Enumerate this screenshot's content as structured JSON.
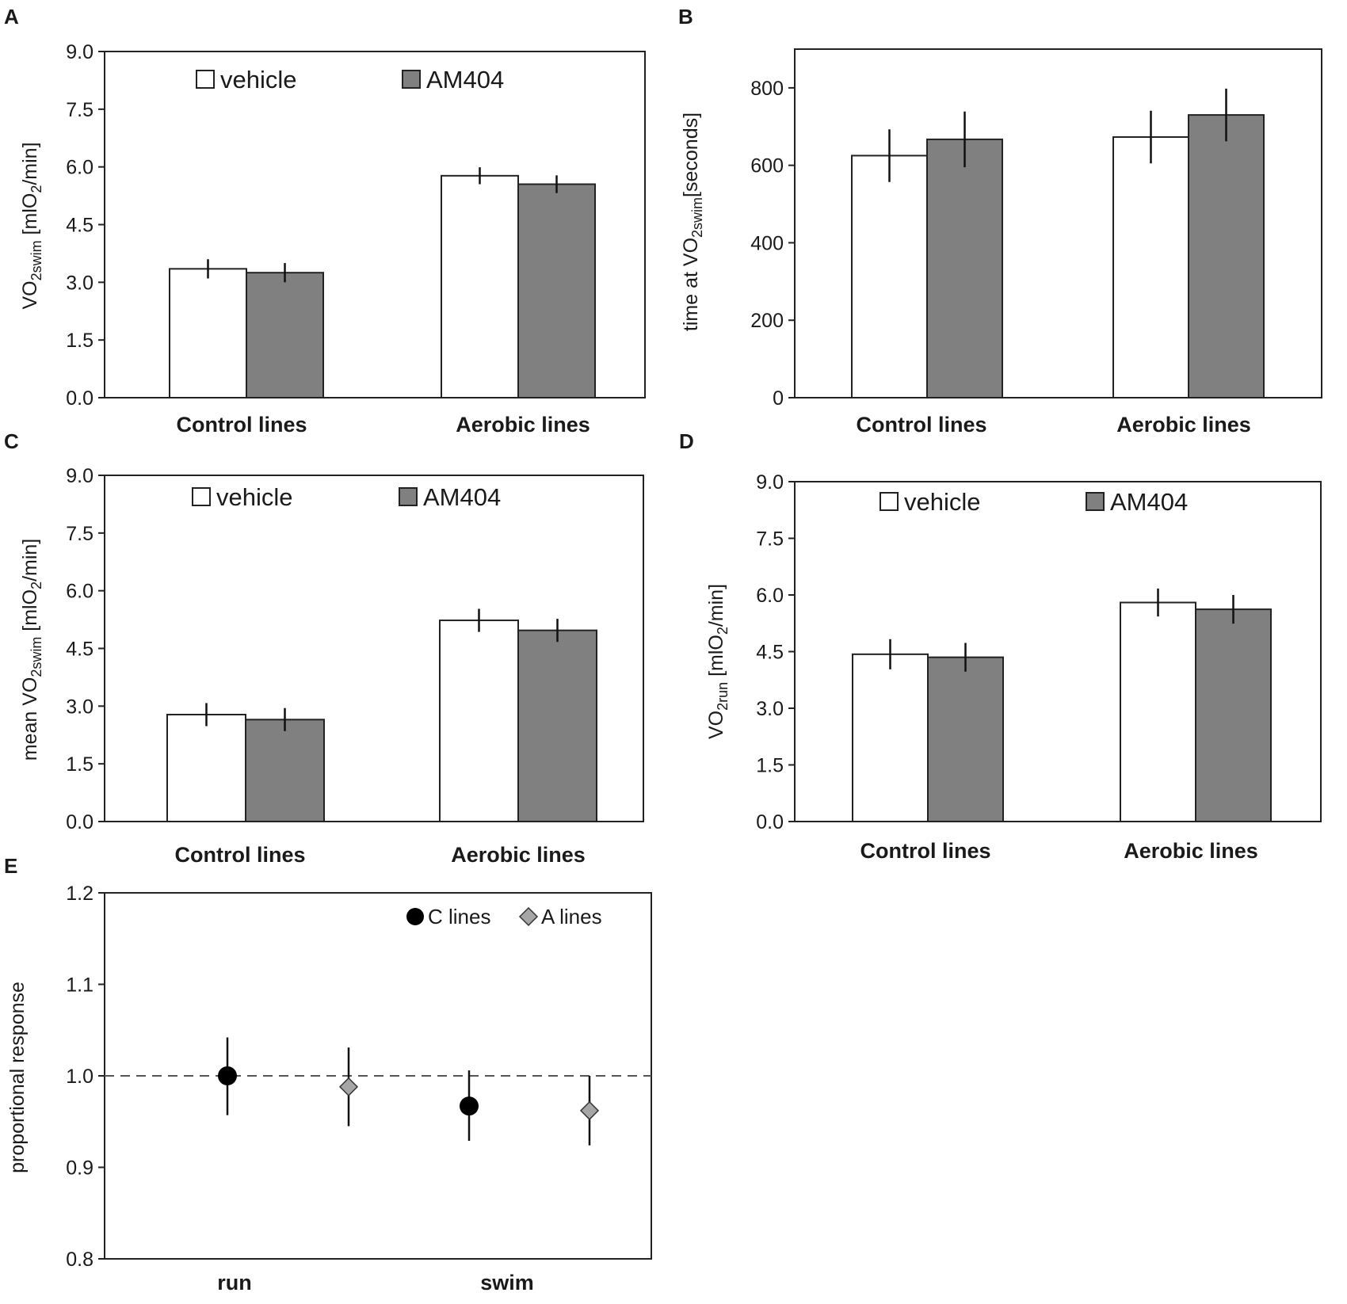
{
  "colors": {
    "vehicle": "#ffffff",
    "am404": "#808080",
    "c_lines": "#000000",
    "a_lines": "#a6a6a6",
    "axis": "#222222"
  },
  "chart_data": [
    {
      "id": "A",
      "type": "bar",
      "panel_label": "A",
      "categories": [
        "Control lines",
        "Aerobic lines"
      ],
      "series": [
        {
          "name": "vehicle",
          "values": [
            3.35,
            5.77
          ],
          "errors": [
            0.25,
            0.22
          ]
        },
        {
          "name": "AM404",
          "values": [
            3.25,
            5.55
          ],
          "errors": [
            0.25,
            0.23
          ]
        }
      ],
      "ylabel": "VO2swim [mlO2/min]",
      "ylabel_parts": [
        "VO",
        "2swim",
        " [mlO",
        "2",
        "/min]"
      ],
      "ylim": [
        0,
        9.0
      ],
      "yticks": [
        "0.0",
        "1.5",
        "3.0",
        "4.5",
        "6.0",
        "7.5",
        "9.0"
      ],
      "legend": [
        "vehicle",
        "AM404"
      ],
      "legend_loc": "top"
    },
    {
      "id": "B",
      "type": "bar",
      "panel_label": "B",
      "categories": [
        "Control lines",
        "Aerobic lines"
      ],
      "series": [
        {
          "name": "vehicle",
          "values": [
            625,
            673
          ],
          "errors": [
            68,
            68
          ]
        },
        {
          "name": "AM404",
          "values": [
            667,
            730
          ],
          "errors": [
            72,
            68
          ]
        }
      ],
      "ylabel": "time at VO2swim[seconds]",
      "ylabel_parts": [
        "time at VO",
        "2swim",
        "[seconds]"
      ],
      "ylim": [
        0,
        900
      ],
      "yticks": [
        "0",
        "200",
        "400",
        "600",
        "800"
      ],
      "legend": [],
      "legend_loc": "none"
    },
    {
      "id": "C",
      "type": "bar",
      "panel_label": "C",
      "categories": [
        "Control lines",
        "Aerobic lines"
      ],
      "series": [
        {
          "name": "vehicle",
          "values": [
            2.78,
            5.23
          ],
          "errors": [
            0.3,
            0.3
          ]
        },
        {
          "name": "AM404",
          "values": [
            2.65,
            4.97
          ],
          "errors": [
            0.3,
            0.3
          ]
        }
      ],
      "ylabel": "mean VO2swim [mlO2/min]",
      "ylabel_parts": [
        "mean VO",
        "2swim",
        " [mlO",
        "2",
        "/min]"
      ],
      "ylim": [
        0,
        9.0
      ],
      "yticks": [
        "0.0",
        "1.5",
        "3.0",
        "4.5",
        "6.0",
        "7.5",
        "9.0"
      ],
      "legend": [
        "vehicle",
        "AM404"
      ],
      "legend_loc": "top"
    },
    {
      "id": "D",
      "type": "bar",
      "panel_label": "D",
      "categories": [
        "Control lines",
        "Aerobic lines"
      ],
      "series": [
        {
          "name": "vehicle",
          "values": [
            4.43,
            5.8
          ],
          "errors": [
            0.4,
            0.37
          ]
        },
        {
          "name": "AM404",
          "values": [
            4.35,
            5.62
          ],
          "errors": [
            0.38,
            0.38
          ]
        }
      ],
      "ylabel": "VO2run [mlO2/min]",
      "ylabel_parts": [
        "VO",
        "2run",
        " [mlO",
        "2",
        "/min]"
      ],
      "ylim": [
        0,
        9.0
      ],
      "yticks": [
        "0.0",
        "1.5",
        "3.0",
        "4.5",
        "6.0",
        "7.5",
        "9.0"
      ],
      "legend": [
        "vehicle",
        "AM404"
      ],
      "legend_loc": "top"
    },
    {
      "id": "E",
      "type": "scatter",
      "panel_label": "E",
      "categories": [
        "run",
        "swim"
      ],
      "series": [
        {
          "name": "C lines",
          "marker": "circle",
          "values": [
            1.0,
            0.967
          ],
          "errors_low": [
            0.043,
            0.038
          ],
          "errors_high": [
            0.042,
            0.039
          ]
        },
        {
          "name": "A lines",
          "marker": "diamond",
          "values": [
            0.988,
            0.962
          ],
          "errors_low": [
            0.043,
            0.038
          ],
          "errors_high": [
            0.043,
            0.038
          ]
        }
      ],
      "ylabel": "proportional response",
      "ylim": [
        0.8,
        1.2
      ],
      "yticks": [
        "0.8",
        "0.9",
        "1.0",
        "1.1",
        "1.2"
      ],
      "reference_line": 1.0,
      "legend": [
        "C lines",
        "A lines"
      ],
      "legend_loc": "top-right"
    }
  ]
}
